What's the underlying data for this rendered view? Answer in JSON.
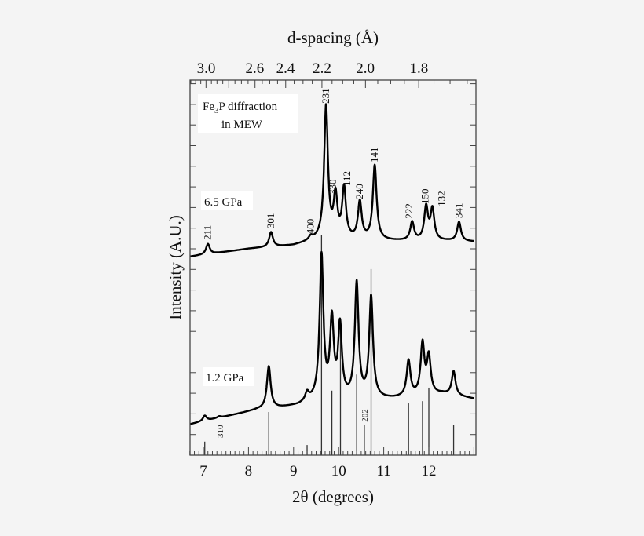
{
  "chart_data": {
    "type": "line",
    "xlabel": "2θ (degrees)",
    "ylabel": "Intensity (A.U.)",
    "xlim": [
      6.7,
      13.05
    ],
    "ylim": [
      0,
      100
    ],
    "x_ticks": [
      7,
      8,
      9,
      10,
      11,
      12
    ],
    "y_tick_labels": "none",
    "grid": false,
    "top_axis": {
      "label": "d-spacing (Å)",
      "ticks": [
        {
          "label": "3.0",
          "two_theta": 7.06
        },
        {
          "label": "2.6",
          "two_theta": 8.14
        },
        {
          "label": "2.4",
          "two_theta": 8.82
        },
        {
          "label": "2.2",
          "two_theta": 9.63
        },
        {
          "label": "2.0",
          "two_theta": 10.59
        },
        {
          "label": "1.8",
          "two_theta": 11.78
        }
      ]
    },
    "legend": {
      "line1_pre": "Fe",
      "line1_sub": "3",
      "line1_post": "P diffraction",
      "line2": "in MEW",
      "placement": "top-left"
    },
    "series": [
      {
        "name": "6.5 GPa",
        "baseline": [
          [
            6.7,
            52.9
          ],
          [
            8.0,
            55.0
          ],
          [
            9.0,
            55.9
          ],
          [
            9.6,
            57.5
          ],
          [
            11.3,
            57.1
          ],
          [
            12.4,
            57.1
          ],
          [
            13.0,
            56.9
          ]
        ],
        "peaks": [
          {
            "x": 7.1,
            "y": 56.3,
            "label": "211"
          },
          {
            "x": 8.5,
            "y": 59.4,
            "label": "301"
          },
          {
            "x": 9.38,
            "y": 57.9,
            "label": "400"
          },
          {
            "x": 9.72,
            "y": 92.7,
            "label": "231"
          },
          {
            "x": 9.93,
            "y": 68.4,
            "label": "330"
          },
          {
            "x": 10.12,
            "y": 70.7,
            "label": "112"
          },
          {
            "x": 10.47,
            "y": 67.2,
            "label": "240"
          },
          {
            "x": 10.8,
            "y": 77.0,
            "label": "141"
          },
          {
            "x": 11.63,
            "y": 62.0,
            "label": "222"
          },
          {
            "x": 11.94,
            "y": 65.9,
            "label": "150"
          },
          {
            "x": 12.08,
            "y": 65.3,
            "label": "132"
          },
          {
            "x": 12.67,
            "y": 62.1,
            "label": "341"
          }
        ]
      },
      {
        "name": "1.2 GPa",
        "baseline": [
          [
            6.7,
            8.2
          ],
          [
            8.2,
            12.1
          ],
          [
            8.7,
            12.6
          ],
          [
            9.1,
            13.2
          ],
          [
            9.5,
            14.5
          ],
          [
            11.2,
            15.0
          ],
          [
            12.3,
            16.3
          ],
          [
            13.0,
            15.0
          ]
        ],
        "peaks": [
          {
            "x": 7.03,
            "y": 10.5
          },
          {
            "x": 7.35,
            "y": 10.3
          },
          {
            "x": 8.45,
            "y": 23.6
          },
          {
            "x": 9.3,
            "y": 16.1
          },
          {
            "x": 9.62,
            "y": 52.7
          },
          {
            "x": 9.85,
            "y": 35.1
          },
          {
            "x": 10.03,
            "y": 33.7
          },
          {
            "x": 10.4,
            "y": 45.4
          },
          {
            "x": 10.72,
            "y": 41.8
          },
          {
            "x": 11.55,
            "y": 24.9
          },
          {
            "x": 11.86,
            "y": 29.3
          },
          {
            "x": 12.0,
            "y": 25.9
          },
          {
            "x": 12.55,
            "y": 22.2
          }
        ]
      }
    ],
    "reference_sticks": [
      {
        "x": 7.03,
        "y": 3.6
      },
      {
        "x": 7.37,
        "y": 0,
        "label": "310"
      },
      {
        "x": 8.45,
        "y": 11.5
      },
      {
        "x": 9.3,
        "y": 2.7
      },
      {
        "x": 9.62,
        "y": 58.6
      },
      {
        "x": 9.85,
        "y": 17.2
      },
      {
        "x": 10.04,
        "y": 33.5
      },
      {
        "x": 10.4,
        "y": 21.5
      },
      {
        "x": 10.57,
        "y": 8.0,
        "label": "202"
      },
      {
        "x": 10.72,
        "y": 49.6
      },
      {
        "x": 11.55,
        "y": 13.8
      },
      {
        "x": 11.86,
        "y": 14.4
      },
      {
        "x": 12.0,
        "y": 18.0
      },
      {
        "x": 12.55,
        "y": 8.0
      }
    ]
  }
}
